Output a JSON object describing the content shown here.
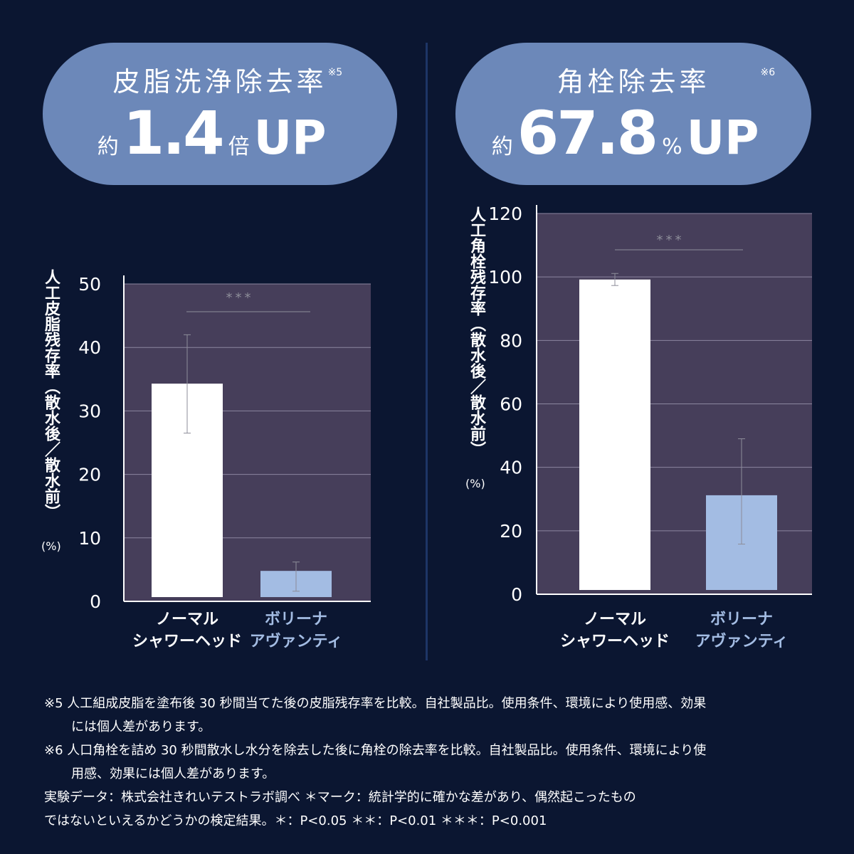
{
  "left_panel": {
    "title": "皮脂洗浄除去率",
    "stat_prefix": "約",
    "stat_value": "1.4",
    "stat_unit": "倍",
    "stat_up": "UP",
    "stat_note": "※5",
    "ylabel": "人工皮脂残存率（散水後／散水前）",
    "ylabel_unit": "(%)"
  },
  "right_panel": {
    "title": "角栓除去率",
    "stat_prefix": "約",
    "stat_value": "67.8",
    "stat_unit": "%",
    "stat_up": "UP",
    "stat_note": "※6",
    "ylabel": "人工角栓残存率（散水後／散水前）",
    "ylabel_unit": "(%)"
  },
  "chart_data": [
    {
      "type": "bar",
      "categories": [
        [
          "ノーマル",
          "シャワーヘッド"
        ],
        [
          "ボリーナ",
          "アヴァンティ"
        ]
      ],
      "values": [
        34.3,
        4.8
      ],
      "error_low": [
        26.5,
        1.6
      ],
      "error_high": [
        42.0,
        6.2
      ],
      "bar_colors": [
        "#ffffff",
        "#a3bce3"
      ],
      "label_colors": [
        "#ffffff",
        "#a3bce3"
      ],
      "ylim": [
        0,
        50
      ],
      "yticks": [
        0,
        10,
        20,
        30,
        40,
        50
      ],
      "significance": "***",
      "grid": true,
      "plot_bg": "#463e5a"
    },
    {
      "type": "bar",
      "categories": [
        [
          "ノーマル",
          "シャワーヘッド"
        ],
        [
          "ボリーナ",
          "アヴァンティ"
        ]
      ],
      "values": [
        99.2,
        31.2
      ],
      "error_low": [
        97.3,
        15.8
      ],
      "error_high": [
        101.1,
        49.0
      ],
      "bar_colors": [
        "#ffffff",
        "#a3bce3"
      ],
      "label_colors": [
        "#ffffff",
        "#a3bce3"
      ],
      "ylim": [
        0,
        120
      ],
      "yticks": [
        0,
        20,
        40,
        60,
        80,
        100,
        120
      ],
      "significance": "***",
      "grid": true,
      "plot_bg": "#463e5a"
    }
  ],
  "footnotes": {
    "note5_line1": "※5 人工組成皮脂を塗布後 30 秒間当てた後の皮脂残存率を比較。自社製品比。使用条件、環境により使用感、効果",
    "note5_line2": "には個人差があります。",
    "note6_line1": "※6 人口角栓を詰め 30 秒間散水し水分を除去した後に角栓の除去率を比較。自社製品比。使用条件、環境により使",
    "note6_line2": "用感、効果には個人差があります。",
    "data_line1": "実験データ：株式会社きれいテストラボ調べ ＊マーク：統計学的に確かな差があり、偶然起こったもの",
    "data_line2": "ではないといえるかどうかの検定結果。＊：P<0.05 ＊＊：P<0.01 ＊＊＊：P<0.001"
  },
  "colors": {
    "background": "#0b1631",
    "pill": "#6c88b9",
    "plot_bg": "#463e5a",
    "accent_blue": "#a3bce3"
  }
}
